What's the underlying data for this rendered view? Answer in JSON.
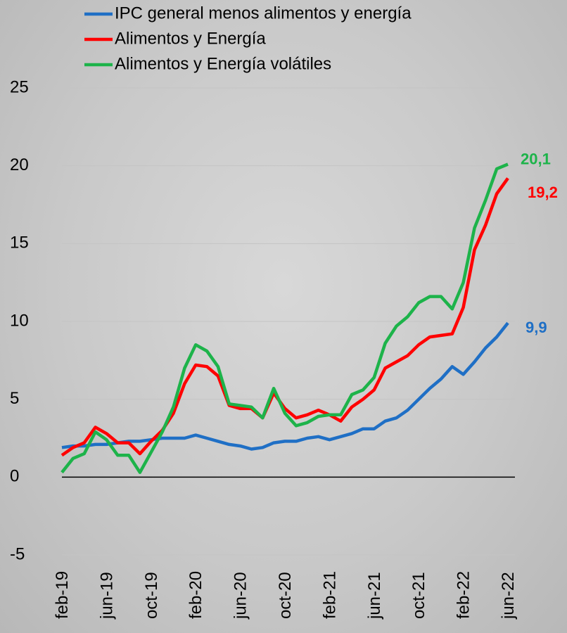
{
  "chart_data": {
    "type": "line",
    "categories": [
      "feb-19",
      null,
      null,
      null,
      "jun-19",
      null,
      null,
      null,
      "oct-19",
      null,
      null,
      null,
      "feb-20",
      null,
      null,
      null,
      "jun-20",
      null,
      null,
      null,
      "oct-20",
      null,
      null,
      null,
      "feb-21",
      null,
      null,
      null,
      "jun-21",
      null,
      null,
      null,
      "oct-21",
      null,
      null,
      null,
      "feb-22",
      null,
      null,
      null,
      "jun-22"
    ],
    "series": [
      {
        "name": "IPC general menos alimentos y energía",
        "color": "#1f6fc5",
        "values": [
          1.9,
          2.0,
          2.0,
          2.1,
          2.1,
          2.2,
          2.3,
          2.3,
          2.4,
          2.5,
          2.5,
          2.5,
          2.7,
          2.5,
          2.3,
          2.1,
          2.0,
          1.8,
          1.9,
          2.2,
          2.3,
          2.3,
          2.5,
          2.6,
          2.4,
          2.6,
          2.8,
          3.1,
          3.1,
          3.6,
          3.8,
          4.3,
          5.0,
          5.7,
          6.3,
          7.1,
          6.6,
          7.4,
          8.3,
          9.0,
          9.9
        ],
        "value_labels": [
          null,
          null,
          null,
          null,
          null,
          null,
          null,
          null,
          null,
          null,
          null,
          null,
          null,
          null,
          null,
          null,
          null,
          null,
          null,
          null,
          null,
          null,
          null,
          null,
          null,
          null,
          null,
          null,
          null,
          null,
          null,
          null,
          null,
          null,
          null,
          null,
          null,
          null,
          null,
          null,
          "9,9"
        ]
      },
      {
        "name": "Alimentos y Energía",
        "color": "#ff0000",
        "values": [
          1.4,
          1.9,
          2.2,
          3.2,
          2.8,
          2.2,
          2.2,
          1.5,
          2.3,
          3.0,
          4.1,
          6.0,
          7.2,
          7.1,
          6.5,
          4.6,
          4.4,
          4.4,
          3.8,
          5.4,
          4.4,
          3.8,
          4.0,
          4.3,
          4.0,
          3.6,
          4.5,
          5.0,
          5.6,
          7.0,
          7.4,
          7.8,
          8.5,
          9.0,
          9.1,
          9.2,
          10.9,
          14.6,
          16.2,
          18.2,
          19.2
        ],
        "value_labels": [
          null,
          null,
          null,
          null,
          null,
          null,
          null,
          null,
          null,
          null,
          null,
          null,
          null,
          null,
          null,
          null,
          null,
          null,
          null,
          null,
          null,
          null,
          null,
          null,
          null,
          null,
          null,
          null,
          null,
          null,
          null,
          null,
          null,
          null,
          null,
          null,
          null,
          null,
          null,
          null,
          "19,2"
        ]
      },
      {
        "name": "Alimentos y Energía volátiles",
        "color": "#1db34a",
        "values": [
          0.3,
          1.2,
          1.5,
          2.9,
          2.4,
          1.4,
          1.4,
          0.3,
          1.6,
          2.9,
          4.5,
          7.0,
          8.5,
          8.1,
          7.1,
          4.7,
          4.6,
          4.5,
          3.8,
          5.7,
          4.1,
          3.3,
          3.5,
          3.9,
          4.0,
          4.0,
          5.3,
          5.6,
          6.4,
          8.6,
          9.7,
          10.3,
          11.2,
          11.6,
          11.6,
          10.8,
          12.5,
          16.0,
          17.8,
          19.8,
          20.1
        ],
        "value_labels": [
          null,
          null,
          null,
          null,
          null,
          null,
          null,
          null,
          null,
          null,
          null,
          null,
          null,
          null,
          null,
          null,
          null,
          null,
          null,
          null,
          null,
          null,
          null,
          null,
          null,
          null,
          null,
          null,
          null,
          null,
          null,
          null,
          null,
          null,
          null,
          null,
          null,
          null,
          null,
          null,
          "20,1"
        ]
      }
    ],
    "ylim": [
      -5,
      25
    ],
    "yticks": [
      -5,
      0,
      5,
      10,
      15,
      20,
      25
    ],
    "grid": true,
    "legend": "top"
  }
}
